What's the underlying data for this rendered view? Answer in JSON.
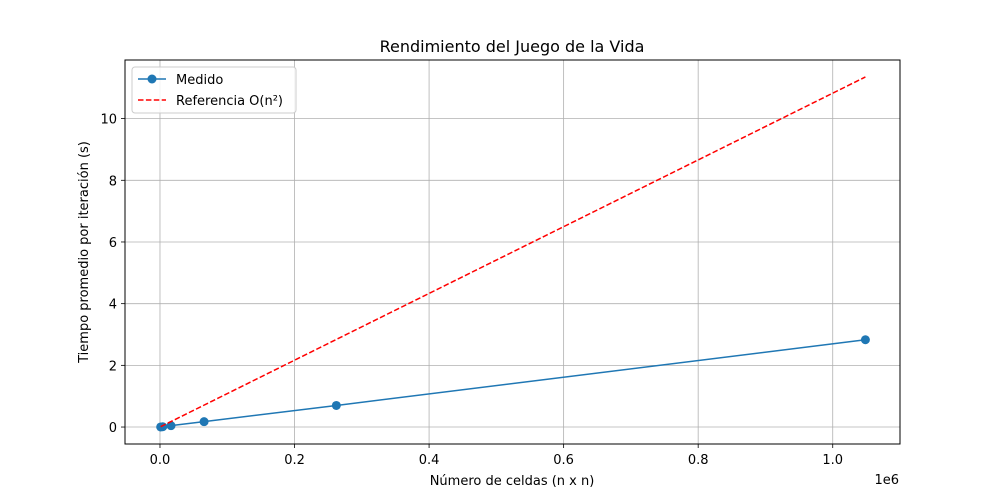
{
  "chart_data": {
    "type": "line",
    "title": "Rendimiento del Juego de la Vida",
    "xlabel": "Número de celdas (n x n)",
    "ylabel": "Tiempo promedio por iteración (s)",
    "x_offset_label": "1e6",
    "xlim": [
      -0.052,
      1.1
    ],
    "ylim": [
      -0.55,
      11.9
    ],
    "x_ticks": [
      0.0,
      0.2,
      0.4,
      0.6,
      0.8,
      1.0
    ],
    "x_tick_labels": [
      "0.0",
      "0.2",
      "0.4",
      "0.6",
      "0.8",
      "1.0"
    ],
    "y_ticks": [
      0,
      2,
      4,
      6,
      8,
      10
    ],
    "y_tick_labels": [
      "0",
      "2",
      "4",
      "6",
      "8",
      "10"
    ],
    "grid": true,
    "legend_position": "top-left",
    "series": [
      {
        "name": "Medido",
        "style": "solid-marker",
        "color": "#1f77b4",
        "x": [
          0.001024,
          0.004096,
          0.016384,
          0.065536,
          0.262144,
          1.048576
        ],
        "y": [
          0.003,
          0.011,
          0.045,
          0.175,
          0.7,
          2.83
        ]
      },
      {
        "name": "Referencia O(n²)",
        "style": "dashed",
        "color": "#ff0000",
        "x": [
          0.001024,
          0.004096,
          0.016384,
          0.065536,
          0.262144,
          1.048576
        ],
        "y": [
          0.011,
          0.044,
          0.178,
          0.71,
          2.84,
          11.35
        ]
      }
    ]
  }
}
